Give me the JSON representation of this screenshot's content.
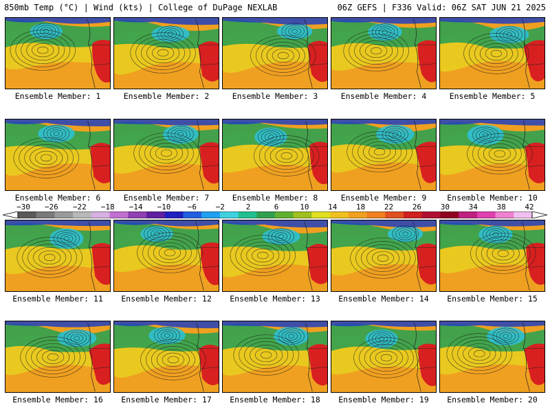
{
  "header": {
    "left": "850mb Temp (°C) | Wind (kts) | College of DuPage NEXLAB",
    "right": "06Z GEFS | F336 Valid: 06Z SAT JUN 21 2025"
  },
  "members": [
    "Ensemble Member: 1",
    "Ensemble Member: 2",
    "Ensemble Member: 3",
    "Ensemble Member: 4",
    "Ensemble Member: 5",
    "Ensemble Member: 6",
    "Ensemble Member: 7",
    "Ensemble Member: 8",
    "Ensemble Member: 9",
    "Ensemble Member: 10",
    "Ensemble Member: 11",
    "Ensemble Member: 12",
    "Ensemble Member: 13",
    "Ensemble Member: 14",
    "Ensemble Member: 15",
    "Ensemble Member: 16",
    "Ensemble Member: 17",
    "Ensemble Member: 18",
    "Ensemble Member: 19",
    "Ensemble Member: 20"
  ],
  "colorbar": {
    "labels": [
      "−30",
      "−26",
      "−22",
      "−18",
      "−14",
      "−10",
      "−6",
      "−2",
      "2",
      "6",
      "10",
      "14",
      "18",
      "22",
      "26",
      "30",
      "34",
      "38",
      "42"
    ],
    "colors": [
      "#5a5a5a",
      "#7a7a7a",
      "#9a9a9a",
      "#b8b8b8",
      "#d6b0e0",
      "#c070d0",
      "#9040b0",
      "#6020a0",
      "#2020c0",
      "#2060e0",
      "#20a0f0",
      "#40d0e0",
      "#20c090",
      "#30a050",
      "#60b030",
      "#a0c020",
      "#e0e020",
      "#f0c020",
      "#f0a020",
      "#f08020",
      "#e05020",
      "#d02020",
      "#b01030",
      "#900020",
      "#c02080",
      "#e040b0",
      "#f080d0",
      "#f0c0f0"
    ]
  },
  "map_colors": {
    "ocean_warm": "#f0a020",
    "ocean_mid": "#e8d020",
    "cool_green": "#30a050",
    "cold_cyan": "#30c0d0",
    "cold_blue": "#2040c0",
    "hot_red": "#d82020",
    "contour": "#1a1a1a"
  }
}
